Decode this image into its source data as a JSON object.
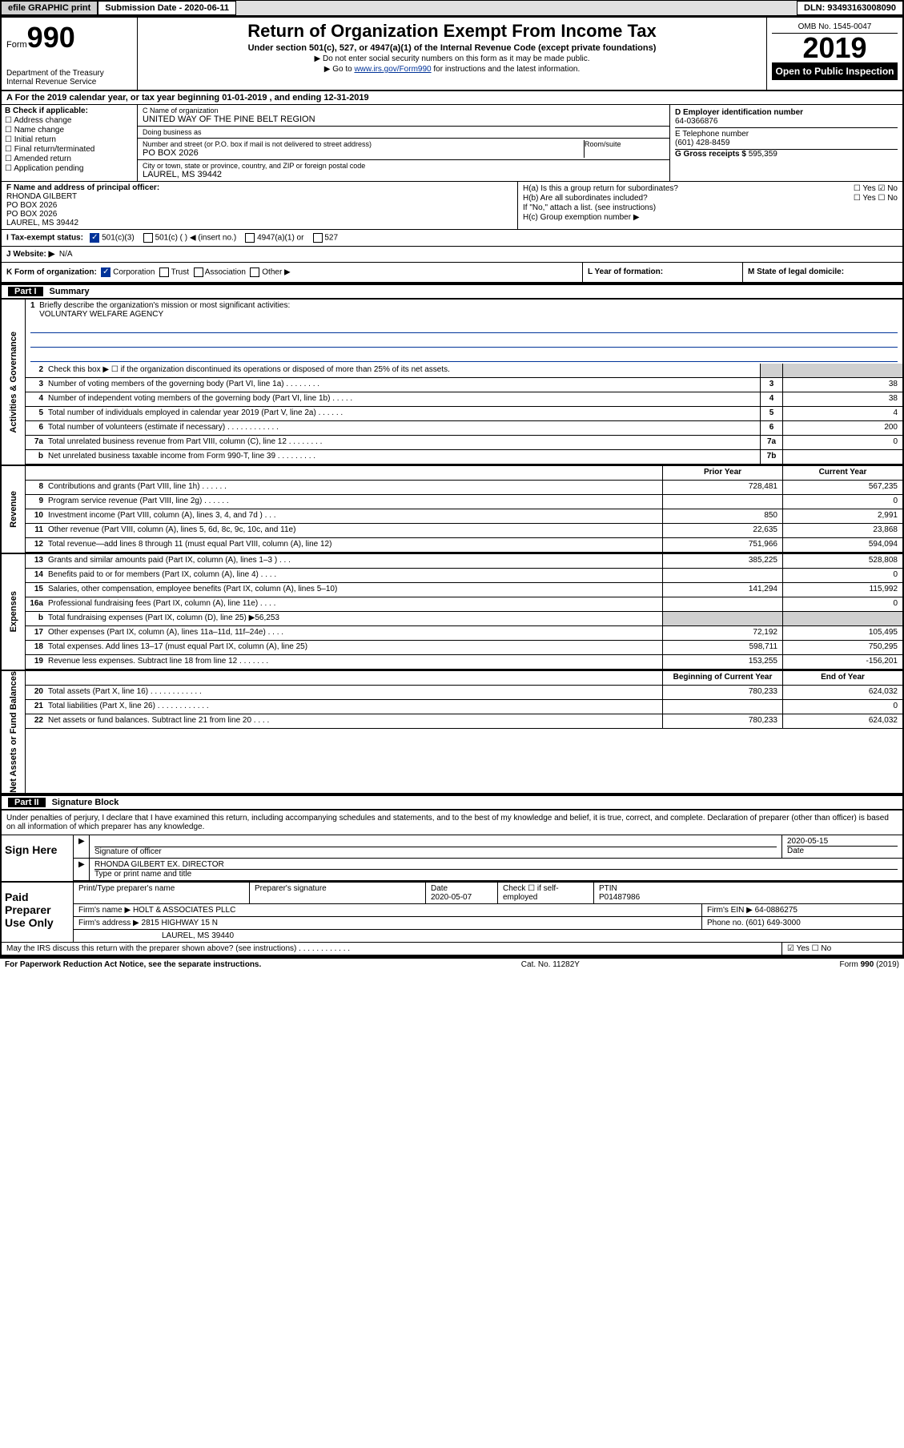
{
  "topbar": {
    "efile": "efile GRAPHIC print",
    "submission": "Submission Date - 2020-06-11",
    "dln": "DLN: 93493163008090"
  },
  "header": {
    "form_prefix": "Form",
    "form_number": "990",
    "title": "Return of Organization Exempt From Income Tax",
    "subtitle": "Under section 501(c), 527, or 4947(a)(1) of the Internal Revenue Code (except private foundations)",
    "note1": "▶ Do not enter social security numbers on this form as it may be made public.",
    "note2_pre": "▶ Go to ",
    "note2_link": "www.irs.gov/Form990",
    "note2_post": " for instructions and the latest information.",
    "dept": "Department of the Treasury\nInternal Revenue Service",
    "omb": "OMB No. 1545-0047",
    "year": "2019",
    "open": "Open to Public Inspection"
  },
  "periodA": {
    "text_pre": "A For the 2019 calendar year, or tax year beginning ",
    "begin": "01-01-2019",
    "mid": " , and ending ",
    "end": "12-31-2019"
  },
  "B": {
    "header": "B Check if applicable:",
    "items": [
      "Address change",
      "Name change",
      "Initial return",
      "Final return/terminated",
      "Amended return",
      "Application pending"
    ]
  },
  "C": {
    "name_lbl": "C Name of organization",
    "name": "UNITED WAY OF THE PINE BELT REGION",
    "dba_lbl": "Doing business as",
    "dba": "",
    "addr_lbl": "Number and street (or P.O. box if mail is not delivered to street address)",
    "room_lbl": "Room/suite",
    "addr": "PO BOX 2026",
    "city_lbl": "City or town, state or province, country, and ZIP or foreign postal code",
    "city": "LAUREL, MS  39442"
  },
  "D": {
    "ein_lbl": "D Employer identification number",
    "ein": "64-0366876",
    "tel_lbl": "E Telephone number",
    "tel": "(601) 428-8459",
    "gross_lbl": "G Gross receipts $ ",
    "gross": "595,359"
  },
  "F": {
    "label": "F Name and address of principal officer:",
    "name": "RHONDA GILBERT",
    "l1": "PO BOX 2026",
    "l2": "PO BOX 2026",
    "l3": "LAUREL, MS  39442"
  },
  "H": {
    "a": "H(a)  Is this a group return for subordinates?",
    "b": "H(b)  Are all subordinates included?",
    "bnote": "If \"No,\" attach a list. (see instructions)",
    "c": "H(c)  Group exemption number ▶"
  },
  "I": {
    "label": "I  Tax-exempt status:",
    "opt1": "501(c)(3)",
    "opt2": "501(c) (   ) ◀ (insert no.)",
    "opt3": "4947(a)(1) or",
    "opt4": "527"
  },
  "J": {
    "label": "J  Website: ▶",
    "val": "N/A"
  },
  "K": {
    "label": "K Form of organization:",
    "opts": [
      "Corporation",
      "Trust",
      "Association",
      "Other ▶"
    ]
  },
  "L": {
    "label": "L Year of formation:"
  },
  "M": {
    "label": "M State of legal domicile:"
  },
  "part1": {
    "num": "Part I",
    "title": "Summary"
  },
  "mission": {
    "num": "1",
    "label": "Briefly describe the organization's mission or most significant activities:",
    "text": "VOLUNTARY WELFARE AGENCY"
  },
  "gov": {
    "label": "Activities & Governance",
    "rows": [
      {
        "n": "2",
        "d": "Check this box ▶ ☐  if the organization discontinued its operations or disposed of more than 25% of its net assets."
      },
      {
        "n": "3",
        "d": "Number of voting members of the governing body (Part VI, line 1a)  .    .    .    .    .    .    .    .",
        "b": "3",
        "v": "38"
      },
      {
        "n": "4",
        "d": "Number of independent voting members of the governing body (Part VI, line 1b)   .    .    .    .    .",
        "b": "4",
        "v": "38"
      },
      {
        "n": "5",
        "d": "Total number of individuals employed in calendar year 2019 (Part V, line 2a)   .    .    .    .    .    .",
        "b": "5",
        "v": "4"
      },
      {
        "n": "6",
        "d": "Total number of volunteers (estimate if necessary)    .    .    .    .    .    .    .    .    .    .    .    .",
        "b": "6",
        "v": "200"
      },
      {
        "n": "7a",
        "d": "Total unrelated business revenue from Part VIII, column (C), line 12   .    .    .    .    .    .    .    .",
        "b": "7a",
        "v": "0"
      },
      {
        "n": "b",
        "d": "Net unrelated business taxable income from Form 990-T, line 39   .    .    .    .    .    .    .    .    .",
        "b": "7b",
        "v": ""
      }
    ]
  },
  "rev": {
    "label": "Revenue",
    "hdr_prior": "Prior Year",
    "hdr_curr": "Current Year",
    "rows": [
      {
        "n": "8",
        "d": "Contributions and grants (Part VIII, line 1h)    .    .    .    .    .    .",
        "p": "728,481",
        "c": "567,235"
      },
      {
        "n": "9",
        "d": "Program service revenue (Part VIII, line 2g)    .    .    .    .    .    .",
        "p": "",
        "c": "0"
      },
      {
        "n": "10",
        "d": "Investment income (Part VIII, column (A), lines 3, 4, and 7d )    .    .    .",
        "p": "850",
        "c": "2,991"
      },
      {
        "n": "11",
        "d": "Other revenue (Part VIII, column (A), lines 5, 6d, 8c, 9c, 10c, and 11e)",
        "p": "22,635",
        "c": "23,868"
      },
      {
        "n": "12",
        "d": "Total revenue—add lines 8 through 11 (must equal Part VIII, column (A), line 12)",
        "p": "751,966",
        "c": "594,094"
      }
    ]
  },
  "exp": {
    "label": "Expenses",
    "rows": [
      {
        "n": "13",
        "d": "Grants and similar amounts paid (Part IX, column (A), lines 1–3 )   .    .    .",
        "p": "385,225",
        "c": "528,808"
      },
      {
        "n": "14",
        "d": "Benefits paid to or for members (Part IX, column (A), line 4)   .    .    .    .",
        "p": "",
        "c": "0"
      },
      {
        "n": "15",
        "d": "Salaries, other compensation, employee benefits (Part IX, column (A), lines 5–10)",
        "p": "141,294",
        "c": "115,992"
      },
      {
        "n": "16a",
        "d": "Professional fundraising fees (Part IX, column (A), line 11e)   .    .    .    .",
        "p": "",
        "c": "0"
      },
      {
        "n": "b",
        "d": "Total fundraising expenses (Part IX, column (D), line 25) ▶56,253",
        "shaded": true
      },
      {
        "n": "17",
        "d": "Other expenses (Part IX, column (A), lines 11a–11d, 11f–24e)    .    .    .    .",
        "p": "72,192",
        "c": "105,495"
      },
      {
        "n": "18",
        "d": "Total expenses. Add lines 13–17 (must equal Part IX, column (A), line 25)",
        "p": "598,711",
        "c": "750,295"
      },
      {
        "n": "19",
        "d": "Revenue less expenses. Subtract line 18 from line 12  .    .    .    .    .    .    .",
        "p": "153,255",
        "c": "-156,201"
      }
    ]
  },
  "net": {
    "label": "Net Assets or Fund Balances",
    "hdr_begin": "Beginning of Current Year",
    "hdr_end": "End of Year",
    "rows": [
      {
        "n": "20",
        "d": "Total assets (Part X, line 16)   .    .    .    .    .    .    .    .    .    .    .    .",
        "p": "780,233",
        "c": "624,032"
      },
      {
        "n": "21",
        "d": "Total liabilities (Part X, line 26)  .    .    .    .    .    .    .    .    .    .    .    .",
        "p": "",
        "c": "0"
      },
      {
        "n": "22",
        "d": "Net assets or fund balances. Subtract line 21 from line 20    .    .    .    .",
        "p": "780,233",
        "c": "624,032"
      }
    ]
  },
  "part2": {
    "num": "Part II",
    "title": "Signature Block"
  },
  "sig": {
    "decl": "Under penalties of perjury, I declare that I have examined this return, including accompanying schedules and statements, and to the best of my knowledge and belief, it is true, correct, and complete. Declaration of preparer (other than officer) is based on all information of which preparer has any knowledge.",
    "sign_here": "Sign Here",
    "sig_officer": "Signature of officer",
    "date": "Date",
    "date_val": "2020-05-15",
    "name_title": "RHONDA GILBERT EX. DIRECTOR",
    "name_title_lbl": "Type or print name and title",
    "paid": "Paid Preparer Use Only",
    "prep_name_lbl": "Print/Type preparer's name",
    "prep_sig_lbl": "Preparer's signature",
    "prep_date_lbl": "Date",
    "prep_date": "2020-05-07",
    "check_self": "Check ☐  if self-employed",
    "ptin_lbl": "PTIN",
    "ptin": "P01487986",
    "firm_name_lbl": "Firm's name      ▶",
    "firm_name": "HOLT & ASSOCIATES PLLC",
    "firm_ein_lbl": "Firm's EIN ▶",
    "firm_ein": "64-0886275",
    "firm_addr_lbl": "Firm's address ▶",
    "firm_addr1": "2815 HIGHWAY 15 N",
    "firm_addr2": "LAUREL, MS  39440",
    "phone_lbl": "Phone no.",
    "phone": "(601) 649-3000",
    "discuss": "May the IRS discuss this return with the preparer shown above? (see instructions)    .    .    .    .    .    .    .    .    .    .    .    .",
    "discuss_yn": "☑ Yes  ☐ No"
  },
  "footer": {
    "left": "For Paperwork Reduction Act Notice, see the separate instructions.",
    "mid": "Cat. No. 11282Y",
    "right": "Form 990 (2019)"
  }
}
